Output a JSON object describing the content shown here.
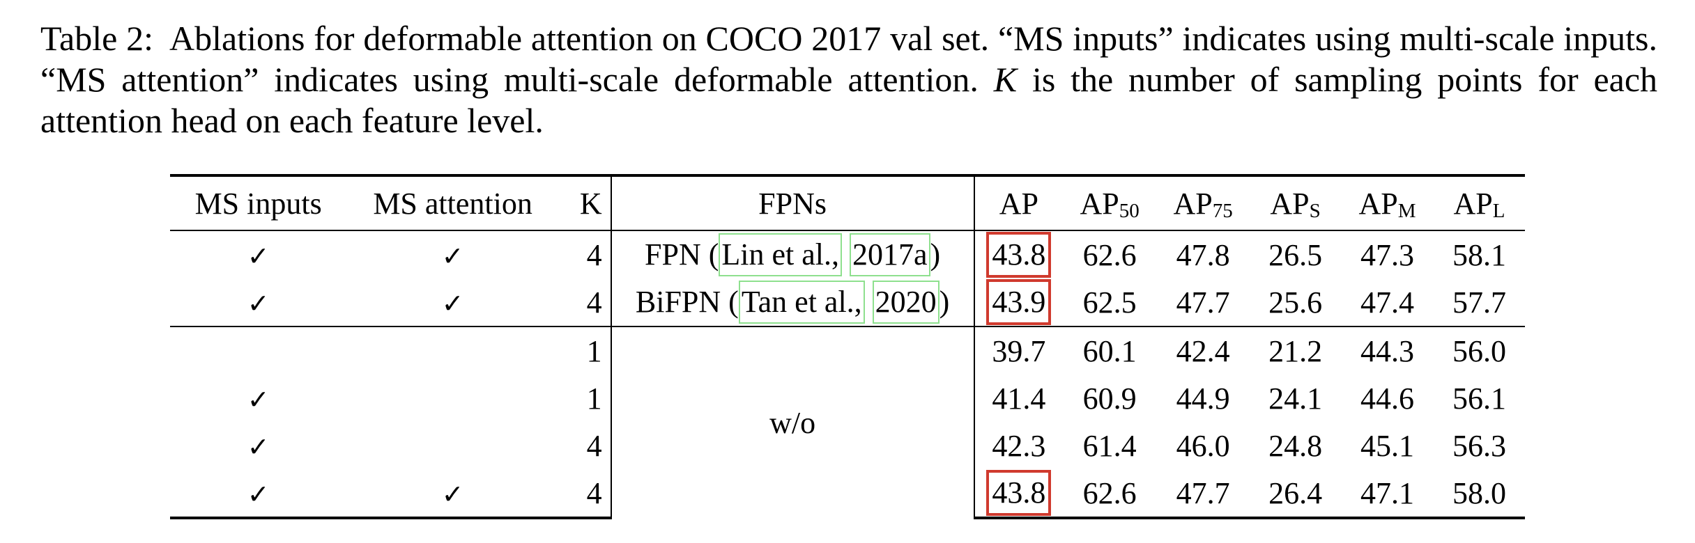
{
  "caption": {
    "label": "Table 2:",
    "text_part1": "Ablations for deformable attention on COCO 2017 val set. “MS inputs” indicates using multi-scale inputs. “MS attention” indicates using multi-scale deformable attention.",
    "k_symbol": "K",
    "text_part2": "is the number of sampling points for each attention head on each feature level."
  },
  "table": {
    "headers": {
      "ms_inputs": "MS inputs",
      "ms_attention": "MS attention",
      "k": "K",
      "fpns": "FPNs",
      "ap": "AP",
      "ap50": {
        "base": "AP",
        "sub": "50"
      },
      "ap75": {
        "base": "AP",
        "sub": "75"
      },
      "aps": {
        "base": "AP",
        "sub": "S"
      },
      "apm": {
        "base": "AP",
        "sub": "M"
      },
      "apl": {
        "base": "AP",
        "sub": "L"
      }
    },
    "check_mark": "✓",
    "shared_fpn_label": "w/o",
    "rows": [
      {
        "k": "4",
        "fpn_name": "FPN (",
        "cite_author": "Lin et al.,",
        "cite_year": "2017a",
        "fpn_close": ")",
        "ap": "43.8",
        "ap50": "62.6",
        "ap75": "47.8",
        "aps": "26.5",
        "apm": "47.3",
        "apl": "58.1"
      },
      {
        "k": "4",
        "fpn_name": "BiFPN (",
        "cite_author": "Tan et al.,",
        "cite_year": "2020",
        "fpn_close": ")",
        "ap": "43.9",
        "ap50": "62.5",
        "ap75": "47.7",
        "aps": "25.6",
        "apm": "47.4",
        "apl": "57.7"
      },
      {
        "k": "1",
        "ap": "39.7",
        "ap50": "60.1",
        "ap75": "42.4",
        "aps": "21.2",
        "apm": "44.3",
        "apl": "56.0"
      },
      {
        "k": "1",
        "ap": "41.4",
        "ap50": "60.9",
        "ap75": "44.9",
        "aps": "24.1",
        "apm": "44.6",
        "apl": "56.1"
      },
      {
        "k": "4",
        "ap": "42.3",
        "ap50": "61.4",
        "ap75": "46.0",
        "aps": "24.8",
        "apm": "45.1",
        "apl": "56.3"
      },
      {
        "k": "4",
        "ap": "43.8",
        "ap50": "62.6",
        "ap75": "47.7",
        "aps": "26.4",
        "apm": "47.1",
        "apl": "58.0"
      }
    ]
  },
  "colors": {
    "highlight_box": "#d03a2e",
    "citation_box": "#8ee08e"
  }
}
